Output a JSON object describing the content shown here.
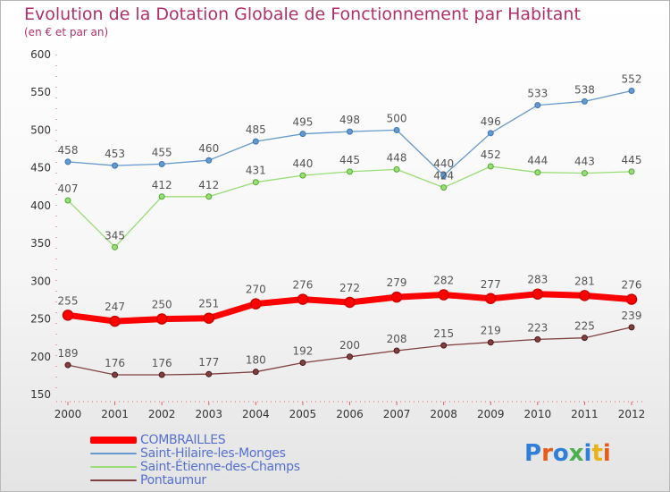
{
  "title": "Evolution de la Dotation Globale de Fonctionnement par Habitant",
  "subtitle": "(en € et par an)",
  "logo_text": "Proxiti",
  "legend": [
    {
      "label": "COMBRAILLES",
      "color": "#ff0000",
      "thickness": 8
    },
    {
      "label": "Saint-Hilaire-les-Monges",
      "color": "#6699cc",
      "thickness": 2
    },
    {
      "label": "Saint-Étienne-des-Champs",
      "color": "#99dd77",
      "thickness": 2
    },
    {
      "label": "Pontaumur",
      "color": "#804040",
      "thickness": 2
    }
  ],
  "chart_data": {
    "type": "line",
    "title": "Evolution de la Dotation Globale de Fonctionnement par Habitant",
    "subtitle": "(en € et par an)",
    "xlabel": "",
    "ylabel": "",
    "x": [
      "2000",
      "2001",
      "2002",
      "2003",
      "2004",
      "2005",
      "2006",
      "2007",
      "2008",
      "2009",
      "2010",
      "2011",
      "2012"
    ],
    "ylim": [
      150,
      600
    ],
    "yticks": [
      150,
      200,
      250,
      300,
      350,
      400,
      450,
      500,
      550,
      600
    ],
    "grid": false,
    "legend_position": "bottom-left",
    "series": [
      {
        "name": "COMBRAILLES",
        "color": "#ff0000",
        "values": [
          255,
          247,
          250,
          251,
          270,
          276,
          272,
          279,
          282,
          277,
          283,
          281,
          276
        ]
      },
      {
        "name": "Saint-Hilaire-les-Monges",
        "color": "#6699cc",
        "values": [
          458,
          453,
          455,
          460,
          485,
          495,
          498,
          500,
          440,
          496,
          533,
          538,
          552
        ]
      },
      {
        "name": "Saint-Étienne-des-Champs",
        "color": "#99dd77",
        "values": [
          407,
          345,
          412,
          412,
          431,
          440,
          445,
          448,
          424,
          452,
          444,
          443,
          445
        ]
      },
      {
        "name": "Pontaumur",
        "color": "#804040",
        "values": [
          189,
          176,
          176,
          177,
          180,
          192,
          200,
          208,
          215,
          219,
          223,
          225,
          239
        ]
      }
    ]
  }
}
